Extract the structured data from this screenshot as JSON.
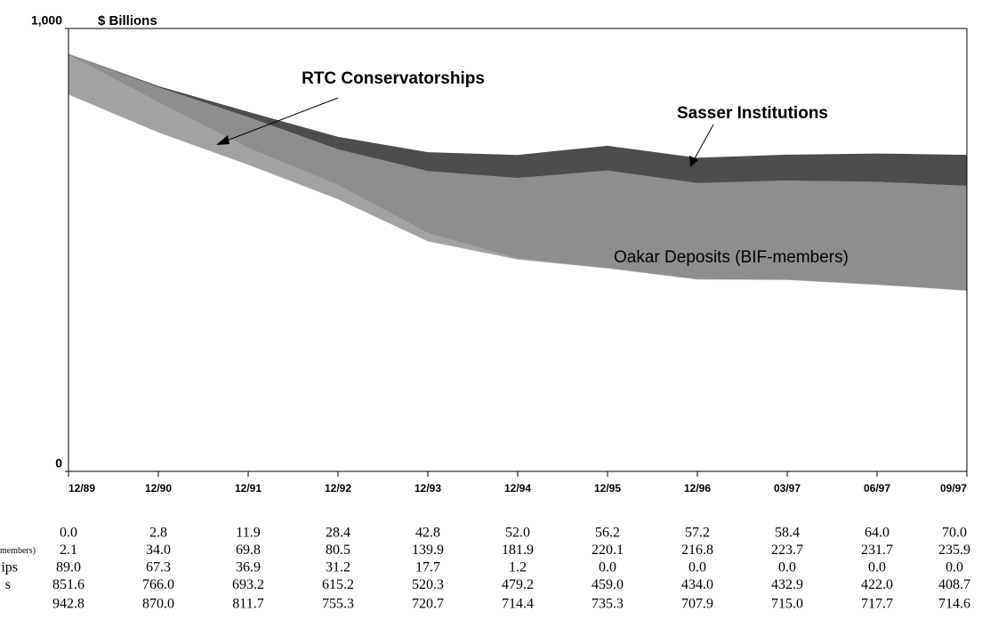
{
  "chart_data": {
    "type": "stacked_area",
    "y_label": "$ Billions",
    "categories": [
      "12/89",
      "12/90",
      "12/91",
      "12/92",
      "12/93",
      "12/94",
      "12/95",
      "12/96",
      "03/97",
      "06/97",
      "09/97"
    ],
    "ylim": [
      0,
      1000
    ],
    "yticks": [
      0,
      {
        "value": 1000,
        "label": "1,000"
      }
    ],
    "annotations": [
      "RTC Conservatorships",
      "Sasser Institutions",
      "Oakar Deposits (BIF-members)"
    ],
    "series": [
      {
        "name": "s",
        "color": "#ffffff",
        "values": [
          851.6,
          766.0,
          693.2,
          615.2,
          520.3,
          479.2,
          459.0,
          434.0,
          432.9,
          422.0,
          408.7
        ],
        "value_labels": [
          "851.6",
          "766.0",
          "693.2",
          "615.2",
          "520.3",
          "479.2",
          "459.0",
          "434.0",
          "432.9",
          "422.0",
          "408.7"
        ]
      },
      {
        "name": "ips",
        "color": "#a2a2a2",
        "values": [
          89.0,
          67.3,
          36.9,
          31.2,
          17.7,
          1.2,
          0.0,
          0.0,
          0.0,
          0.0,
          0.0
        ],
        "value_labels": [
          "89.0",
          "67.3",
          "36.9",
          "31.2",
          "17.7",
          "1.2",
          "0.0",
          "0.0",
          "0.0",
          "0.0",
          "0.0"
        ]
      },
      {
        "name": "F-members)",
        "color": "#8e8e8e",
        "values": [
          2.1,
          34.0,
          69.8,
          80.5,
          139.9,
          181.9,
          220.1,
          216.8,
          223.7,
          231.7,
          235.9
        ],
        "value_labels": [
          "2.1",
          "34.0",
          "69.8",
          "80.5",
          "139.9",
          "181.9",
          "220.1",
          "216.8",
          "223.7",
          "231.7",
          "235.9"
        ]
      },
      {
        "color": "#4d4d4d",
        "values": [
          0.0,
          2.8,
          11.9,
          28.4,
          42.8,
          52.0,
          56.2,
          57.2,
          58.4,
          64.0,
          70.0
        ],
        "value_labels": [
          "0.0",
          "2.8",
          "11.9",
          "28.4",
          "42.8",
          "52.0",
          "56.2",
          "57.2",
          "58.4",
          "64.0",
          "70.0"
        ]
      }
    ],
    "totals": [
      942.8,
      870.0,
      811.7,
      755.3,
      720.7,
      714.4,
      735.3,
      707.9,
      715.0,
      717.7,
      714.6
    ],
    "total_labels": [
      "942.8",
      "870.0",
      "811.7",
      "755.3",
      "720.7",
      "714.4",
      "735.3",
      "707.9",
      "715.0",
      "717.7",
      "714.6"
    ]
  }
}
